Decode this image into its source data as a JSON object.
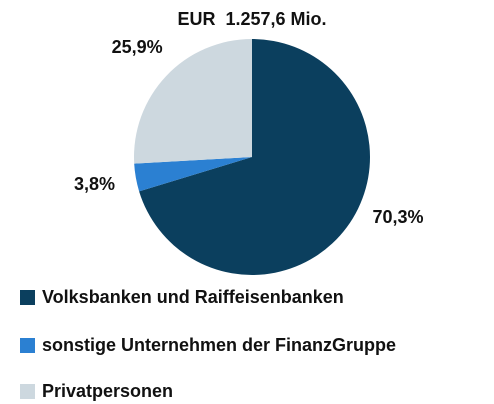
{
  "chart_data": {
    "type": "pie",
    "title": "EUR  1.257,6 Mio.",
    "categories": [
      "Volksbanken und Raiffeisenbanken",
      "sonstige Unternehmen der FinanzGruppe",
      "Privatpersonen"
    ],
    "values": [
      70.3,
      3.8,
      25.9
    ],
    "value_labels": [
      "70,3%",
      "3,8%",
      "25,9%"
    ],
    "colors": [
      "#0b3f5e",
      "#2b80d2",
      "#cdd8df"
    ]
  }
}
